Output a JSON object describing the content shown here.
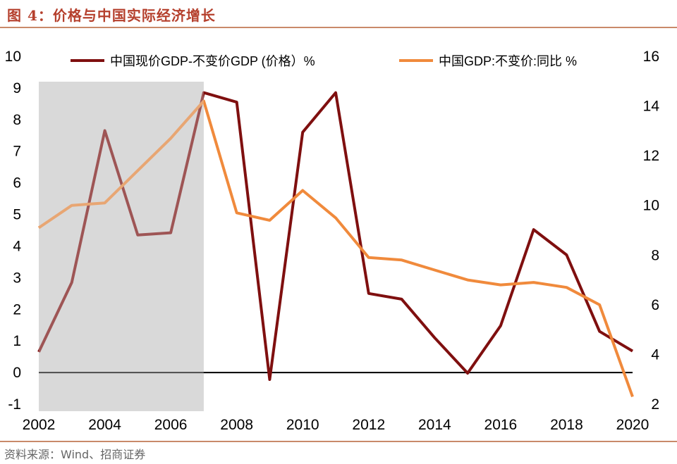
{
  "title": "图 4：价格与中国实际经济增长",
  "source": "资料来源：Wind、招商证券",
  "chart_data": {
    "type": "line",
    "x": [
      2002,
      2003,
      2004,
      2005,
      2006,
      2007,
      2008,
      2009,
      2010,
      2011,
      2012,
      2013,
      2014,
      2015,
      2016,
      2017,
      2018,
      2019,
      2020
    ],
    "x_ticks": [
      "2002",
      "2004",
      "2006",
      "2008",
      "2010",
      "2012",
      "2014",
      "2016",
      "2018",
      "2020"
    ],
    "y_left_ticks": [
      "-1",
      "0",
      "1",
      "2",
      "3",
      "4",
      "5",
      "6",
      "7",
      "8",
      "9",
      "10"
    ],
    "y_right_ticks": [
      "2",
      "4",
      "6",
      "8",
      "10",
      "12",
      "14",
      "16"
    ],
    "y_left_lim": [
      -1,
      10
    ],
    "y_right_lim": [
      2,
      16
    ],
    "shaded_region": [
      2002,
      2007
    ],
    "series": [
      {
        "name": "中国现价GDP-不变价GDP (价格）%",
        "axis": "left",
        "color": "#7f0f0f",
        "values": [
          0.65,
          2.85,
          7.65,
          4.35,
          4.42,
          8.85,
          8.55,
          -0.22,
          7.6,
          8.85,
          2.5,
          2.32,
          1.1,
          -0.02,
          1.48,
          4.52,
          3.72,
          1.3,
          0.68
        ]
      },
      {
        "name": "中国GDP:不变价:同比 %",
        "axis": "right",
        "color": "#f08a3c",
        "values": [
          9.1,
          10.0,
          10.1,
          11.4,
          12.7,
          14.2,
          9.7,
          9.4,
          10.6,
          9.5,
          7.9,
          7.8,
          7.4,
          7.0,
          6.8,
          6.9,
          6.7,
          6.0,
          2.3
        ]
      }
    ],
    "legend_position": "top",
    "grid": false
  }
}
